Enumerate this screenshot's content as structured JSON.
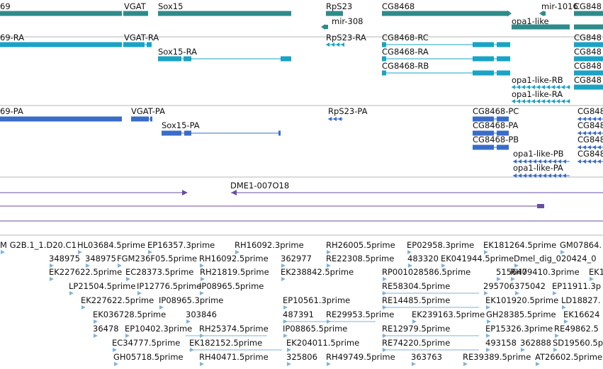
{
  "colors": {
    "gene": "#2e8b8b",
    "transcript": "#1aa3c4",
    "protein": "#3a6cc8",
    "alignment": "#6a4fa0",
    "est": "#7fb2d8",
    "separator": "#b4b4b4"
  },
  "tracks": {
    "gene": {
      "labels": [
        "69",
        "VGAT",
        "Sox15",
        "RpS23",
        "mir-308",
        "CG8468",
        "mir-1016",
        "opa1-like",
        "CG848"
      ]
    },
    "transcript": {
      "labels": [
        "69-RA",
        "VGAT-RA",
        "Sox15-RA",
        "RpS23-RA",
        "CG8468-RC",
        "CG8468-RA",
        "CG8468-RB",
        "opa1-like-RB",
        "opa1-like-RA",
        "CG848",
        "CG848",
        "CG848",
        "CG848"
      ]
    },
    "protein": {
      "labels": [
        "69-PA",
        "VGAT-PA",
        "Sox15-PA",
        "RpS23-PA",
        "CG8468-PC",
        "CG8468-PA",
        "CG8468-PB",
        "opa1-like-PB",
        "opa1-like-PA",
        "CG848",
        "CG848",
        "CG848",
        "CG848"
      ]
    },
    "alignment": {
      "labels": [
        "DME1-007O18"
      ]
    },
    "est": {
      "labels": [
        "M G2B.1_1.D20.C1",
        "HL03684.5prime",
        "EP16357.3prime",
        "RH16092.3prime",
        "RH26005.5prime",
        "EP02958.3prime",
        "EK181264.5prime",
        "GM07864.",
        "348975",
        "348975",
        "FGM236F05.5prime",
        "RH16092.5prime",
        "362977",
        "RE22308.5prime",
        "483320",
        "EK041944.5prime",
        "Dmel_dig_020424_0",
        "EK227622.5prime",
        "EC28373.5prime",
        "RH21819.5prime",
        "EK238842.5prime",
        "RP001028586.5prime",
        "515647",
        "RH09410.3prime",
        "EK1",
        "LP21504.5prime",
        "IP12776.5prime",
        "IP08965.5prime",
        "RE58304.5prime",
        "295706",
        "375042",
        "EP11911.3p",
        "EK227622.5prime",
        "IP08965.3prime",
        "EP10561.3prime",
        "RE14485.5prime",
        "EK101920.5prime",
        "LD18827.",
        "EK036728.5prime",
        "303846",
        "487391",
        "RE29953.5prime",
        "EK239163.5prime",
        "GH28385.5prime",
        "EK16624",
        "36478",
        "EP10402.3prime",
        "RH25374.5prime",
        "IP08865.5prime",
        "RE12979.5prime",
        "EP15326.3prime",
        "RE49862.5",
        "EC34777.5prime",
        "EK182152.5prime",
        "EK204011.5prime",
        "RE74220.5prime",
        "493158",
        "362888",
        "SD19560.5p",
        "GH05718.5prime",
        "RH40471.5prime",
        "325806",
        "RH49749.5prime",
        "363763",
        "RE39389.5prime",
        "AT26602.5prime"
      ]
    }
  }
}
